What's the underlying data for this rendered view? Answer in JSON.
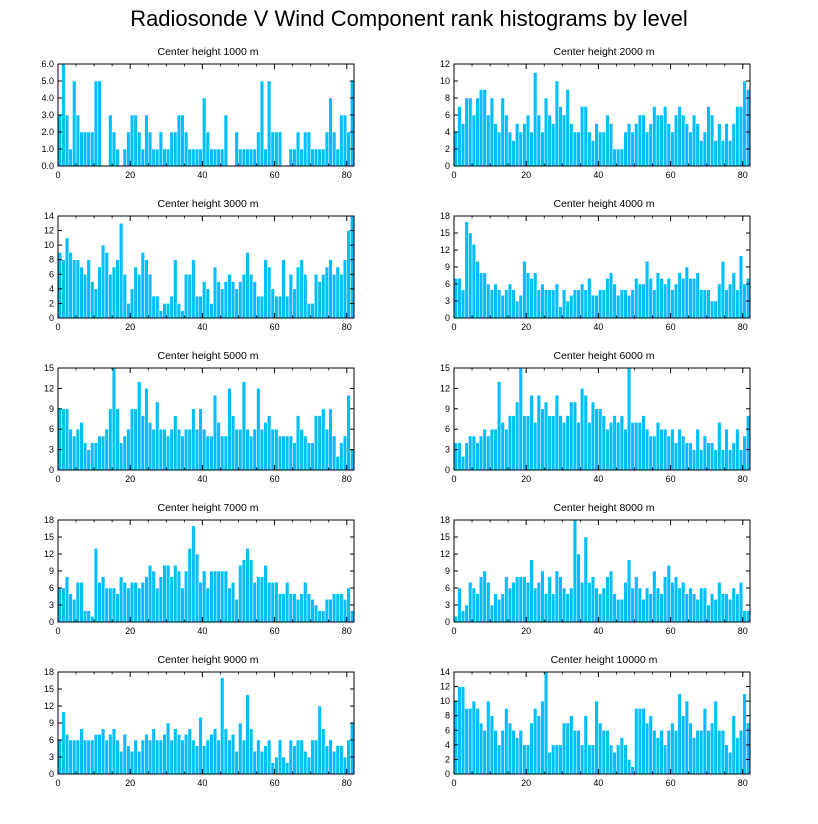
{
  "figure": {
    "title": "Radiosonde V Wind Component rank histograms by level",
    "bar_color": "#00bfff",
    "bar_edge_color": "#ffffff",
    "axis_color": "#000000"
  },
  "chart_data": [
    {
      "type": "bar",
      "title": "Center height 1000 m",
      "x_start": 0,
      "xticks": [
        0,
        20,
        40,
        60,
        80
      ],
      "xlim": [
        0,
        82
      ],
      "ylim": [
        0,
        6
      ],
      "yticks": [
        "0.0",
        "1.0",
        "2.0",
        "3.0",
        "4.0",
        "5.0",
        "6.0"
      ],
      "values": [
        3,
        6,
        3,
        1,
        5,
        3,
        2,
        2,
        2,
        2,
        5,
        5,
        0,
        0,
        3,
        2,
        1,
        0,
        1,
        2,
        3,
        3,
        2,
        1,
        3,
        2,
        1,
        1,
        2,
        1,
        1,
        2,
        2,
        3,
        3,
        2,
        1,
        1,
        1,
        1,
        4,
        2,
        1,
        1,
        1,
        1,
        3,
        0,
        0,
        2,
        1,
        1,
        1,
        1,
        1,
        2,
        5,
        1,
        5,
        2,
        2,
        2,
        0,
        0,
        1,
        1,
        2,
        1,
        2,
        2,
        1,
        1,
        1,
        1,
        2,
        4,
        2,
        1,
        3,
        3,
        2,
        5
      ]
    },
    {
      "type": "bar",
      "title": "Center height 2000 m",
      "x_start": 0,
      "xticks": [
        0,
        20,
        40,
        60,
        80
      ],
      "xlim": [
        0,
        82
      ],
      "ylim": [
        0,
        12
      ],
      "yticks": [
        "0",
        "2",
        "4",
        "6",
        "8",
        "10",
        "12"
      ],
      "values": [
        4,
        7,
        5,
        8,
        8,
        6,
        8,
        9,
        9,
        6,
        8,
        5,
        4,
        8,
        6,
        4,
        3,
        5,
        4,
        5,
        6,
        4,
        11,
        6,
        4,
        8,
        6,
        5,
        10,
        7,
        6,
        9,
        5,
        4,
        4,
        7,
        7,
        4,
        3,
        5,
        4,
        4,
        6,
        5,
        2,
        2,
        2,
        4,
        5,
        4,
        5,
        6,
        6,
        4,
        5,
        7,
        6,
        6,
        7,
        5,
        4,
        6,
        7,
        6,
        5,
        4,
        6,
        5,
        3,
        4,
        7,
        6,
        3,
        5,
        3,
        5,
        3,
        5,
        7,
        7,
        10,
        9
      ]
    },
    {
      "type": "bar",
      "title": "Center height 3000 m",
      "x_start": 0,
      "xticks": [
        0,
        20,
        40,
        60,
        80
      ],
      "xlim": [
        0,
        82
      ],
      "ylim": [
        0,
        14
      ],
      "yticks": [
        "0",
        "2",
        "4",
        "6",
        "8",
        "10",
        "12",
        "14"
      ],
      "values": [
        9,
        8,
        11,
        9,
        8,
        8,
        7,
        6,
        8,
        5,
        4,
        7,
        10,
        9,
        6,
        7,
        8,
        13,
        6,
        2,
        4,
        7,
        6,
        9,
        8,
        6,
        3,
        3,
        1,
        2,
        2,
        3,
        8,
        2,
        1,
        6,
        6,
        8,
        3,
        3,
        5,
        4,
        2,
        7,
        5,
        4,
        5,
        6,
        5,
        4,
        5,
        6,
        9,
        6,
        5,
        3,
        3,
        8,
        7,
        4,
        3,
        3,
        8,
        3,
        6,
        4,
        7,
        8,
        6,
        2,
        2,
        6,
        5,
        6,
        7,
        8,
        6,
        7,
        6,
        8,
        12,
        14
      ]
    },
    {
      "type": "bar",
      "title": "Center height 4000 m",
      "x_start": 0,
      "xticks": [
        0,
        20,
        40,
        60,
        80
      ],
      "xlim": [
        0,
        82
      ],
      "ylim": [
        0,
        18
      ],
      "yticks": [
        "0",
        "3",
        "6",
        "9",
        "12",
        "15",
        "18"
      ],
      "values": [
        7,
        7,
        5,
        17,
        15,
        13,
        10,
        8,
        8,
        6,
        5,
        6,
        5,
        4,
        5,
        6,
        5,
        3,
        4,
        10,
        8,
        7,
        8,
        5,
        6,
        5,
        5,
        5,
        6,
        2,
        5,
        3,
        4,
        5,
        5,
        6,
        5,
        7,
        4,
        4,
        5,
        5,
        7,
        8,
        6,
        4,
        5,
        5,
        4,
        5,
        7,
        6,
        6,
        10,
        7,
        5,
        8,
        7,
        6,
        7,
        5,
        6,
        8,
        7,
        9,
        7,
        7,
        8,
        5,
        5,
        5,
        3,
        3,
        6,
        10,
        5,
        6,
        8,
        5,
        11,
        6,
        7
      ]
    },
    {
      "type": "bar",
      "title": "Center height 5000 m",
      "x_start": 0,
      "xticks": [
        0,
        20,
        40,
        60,
        80
      ],
      "xlim": [
        0,
        82
      ],
      "ylim": [
        0,
        15
      ],
      "yticks": [
        "0",
        "3",
        "6",
        "9",
        "12",
        "15"
      ],
      "values": [
        9,
        9,
        9,
        6,
        5,
        6,
        7,
        4,
        3,
        4,
        4,
        5,
        5,
        6,
        9,
        15,
        9,
        4,
        5,
        6,
        9,
        9,
        13,
        8,
        12,
        7,
        6,
        10,
        6,
        6,
        5,
        6,
        8,
        6,
        5,
        6,
        6,
        9,
        6,
        9,
        6,
        5,
        5,
        11,
        7,
        5,
        5,
        12,
        8,
        6,
        6,
        13,
        6,
        5,
        6,
        12,
        6,
        7,
        8,
        6,
        6,
        5,
        5,
        5,
        5,
        4,
        8,
        6,
        5,
        4,
        4,
        8,
        8,
        9,
        6,
        9,
        5,
        2,
        4,
        5,
        11,
        3
      ]
    },
    {
      "type": "bar",
      "title": "Center height 6000 m",
      "x_start": 0,
      "xticks": [
        0,
        20,
        40,
        60,
        80
      ],
      "xlim": [
        0,
        82
      ],
      "ylim": [
        0,
        15
      ],
      "yticks": [
        "0",
        "3",
        "6",
        "9",
        "12",
        "15"
      ],
      "values": [
        4,
        4,
        2,
        4,
        5,
        5,
        4,
        5,
        6,
        5,
        6,
        6,
        13,
        7,
        6,
        8,
        8,
        10,
        15,
        8,
        8,
        11,
        7,
        11,
        9,
        10,
        8,
        8,
        11,
        8,
        7,
        8,
        10,
        10,
        7,
        12,
        11,
        7,
        10,
        9,
        9,
        8,
        6,
        7,
        8,
        7,
        8,
        6,
        15,
        7,
        7,
        7,
        8,
        6,
        5,
        5,
        7,
        6,
        6,
        5,
        6,
        4,
        6,
        5,
        4,
        4,
        3,
        6,
        3,
        5,
        4,
        4,
        3,
        7,
        3,
        6,
        3,
        4,
        6,
        3,
        5,
        8
      ]
    },
    {
      "type": "bar",
      "title": "Center height 7000 m",
      "x_start": 0,
      "xticks": [
        0,
        20,
        40,
        60,
        80
      ],
      "xlim": [
        0,
        82
      ],
      "ylim": [
        0,
        18
      ],
      "yticks": [
        "0",
        "3",
        "6",
        "9",
        "12",
        "15",
        "18"
      ],
      "values": [
        6,
        6,
        8,
        5,
        4,
        7,
        7,
        2,
        2,
        1,
        13,
        7,
        8,
        6,
        6,
        6,
        5,
        8,
        7,
        6,
        7,
        7,
        6,
        7,
        8,
        10,
        9,
        6,
        8,
        10,
        10,
        8,
        10,
        9,
        6,
        9,
        13,
        17,
        12,
        7,
        9,
        6,
        9,
        9,
        9,
        9,
        9,
        6,
        7,
        4,
        10,
        11,
        13,
        11,
        7,
        8,
        8,
        10,
        7,
        7,
        7,
        5,
        5,
        7,
        5,
        5,
        4,
        5,
        7,
        5,
        4,
        3,
        2,
        2,
        4,
        4,
        5,
        5,
        5,
        4,
        6,
        2
      ]
    },
    {
      "type": "bar",
      "title": "Center height 8000 m",
      "x_start": 0,
      "xticks": [
        0,
        20,
        40,
        60,
        80
      ],
      "xlim": [
        0,
        82
      ],
      "ylim": [
        0,
        18
      ],
      "yticks": [
        "0",
        "3",
        "6",
        "9",
        "12",
        "15",
        "18"
      ],
      "values": [
        1,
        6,
        2,
        3,
        7,
        6,
        5,
        8,
        9,
        7,
        3,
        5,
        4,
        5,
        8,
        6,
        7,
        8,
        8,
        8,
        7,
        11,
        6,
        7,
        9,
        5,
        8,
        5,
        9,
        8,
        6,
        5,
        6,
        18,
        12,
        7,
        15,
        7,
        8,
        6,
        5,
        6,
        8,
        9,
        5,
        4,
        4,
        7,
        11,
        6,
        8,
        6,
        4,
        6,
        5,
        9,
        6,
        5,
        8,
        10,
        7,
        8,
        6,
        7,
        5,
        6,
        5,
        4,
        6,
        6,
        3,
        5,
        4,
        7,
        5,
        5,
        4,
        6,
        5,
        7,
        2,
        2
      ]
    },
    {
      "type": "bar",
      "title": "Center height 9000 m",
      "x_start": 0,
      "xticks": [
        0,
        20,
        40,
        60,
        80
      ],
      "xlim": [
        0,
        82
      ],
      "ylim": [
        0,
        18
      ],
      "yticks": [
        "0",
        "3",
        "6",
        "9",
        "12",
        "15",
        "18"
      ],
      "values": [
        6,
        11,
        7,
        6,
        6,
        6,
        8,
        6,
        6,
        6,
        7,
        7,
        8,
        6,
        7,
        8,
        6,
        4,
        7,
        5,
        4,
        6,
        4,
        6,
        7,
        6,
        8,
        6,
        6,
        7,
        9,
        6,
        8,
        7,
        6,
        7,
        8,
        6,
        5,
        10,
        5,
        6,
        7,
        8,
        6,
        17,
        8,
        6,
        7,
        4,
        9,
        6,
        14,
        8,
        4,
        6,
        4,
        5,
        6,
        2,
        3,
        6,
        3,
        2,
        6,
        5,
        6,
        6,
        4,
        3,
        6,
        6,
        12,
        8,
        5,
        6,
        4,
        5,
        5,
        3,
        6,
        9
      ]
    },
    {
      "type": "bar",
      "title": "Center height 10000 m",
      "x_start": 0,
      "xticks": [
        0,
        20,
        40,
        60,
        80
      ],
      "xlim": [
        0,
        82
      ],
      "ylim": [
        0,
        14
      ],
      "yticks": [
        "0",
        "2",
        "4",
        "6",
        "8",
        "10",
        "12",
        "14"
      ],
      "values": [
        10,
        12,
        12,
        9,
        9,
        10,
        9,
        7,
        6,
        10,
        8,
        6,
        4,
        6,
        9,
        7,
        6,
        5,
        6,
        4,
        4,
        7,
        9,
        8,
        10,
        14,
        3,
        4,
        4,
        4,
        7,
        7,
        8,
        6,
        6,
        4,
        8,
        4,
        4,
        10,
        7,
        6,
        6,
        4,
        3,
        4,
        5,
        4,
        2,
        1,
        9,
        9,
        9,
        7,
        8,
        6,
        5,
        6,
        4,
        6,
        7,
        6,
        11,
        8,
        10,
        7,
        5,
        6,
        6,
        9,
        6,
        7,
        10,
        6,
        6,
        4,
        3,
        8,
        5,
        6,
        11,
        7
      ]
    }
  ]
}
